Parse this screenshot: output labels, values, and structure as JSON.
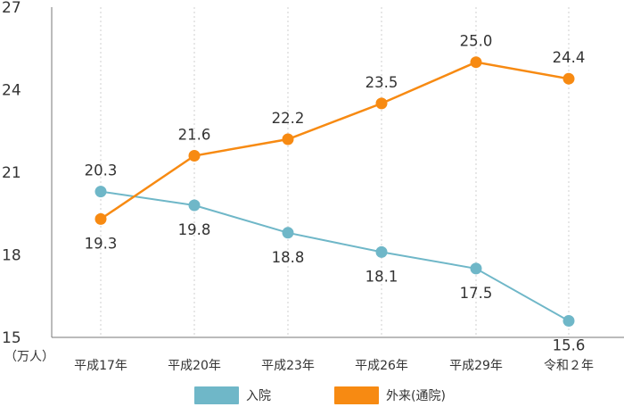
{
  "chart_data": {
    "type": "line",
    "categories": [
      "平成17年",
      "平成20年",
      "平成23年",
      "平成26年",
      "平成29年",
      "令和２年"
    ],
    "ylim": [
      15,
      27
    ],
    "yticks": [
      "27",
      "24",
      "21",
      "18",
      "15"
    ],
    "yunit": "（万人）",
    "grid": "vertical dashed at each category",
    "legend_position": "bottom-center",
    "series": [
      {
        "name": "入院",
        "color": "#6fb7c8",
        "values": [
          20.3,
          19.8,
          18.8,
          18.1,
          17.5,
          15.6
        ],
        "labels": [
          "20.3",
          "19.8",
          "18.8",
          "18.1",
          "17.5",
          "15.6"
        ]
      },
      {
        "name": "外来(通院)",
        "color": "#f78a12",
        "values": [
          19.3,
          21.6,
          22.2,
          23.5,
          25.0,
          24.4
        ],
        "labels": [
          "19.3",
          "21.6",
          "22.2",
          "23.5",
          "25.0",
          "24.4"
        ]
      }
    ]
  }
}
